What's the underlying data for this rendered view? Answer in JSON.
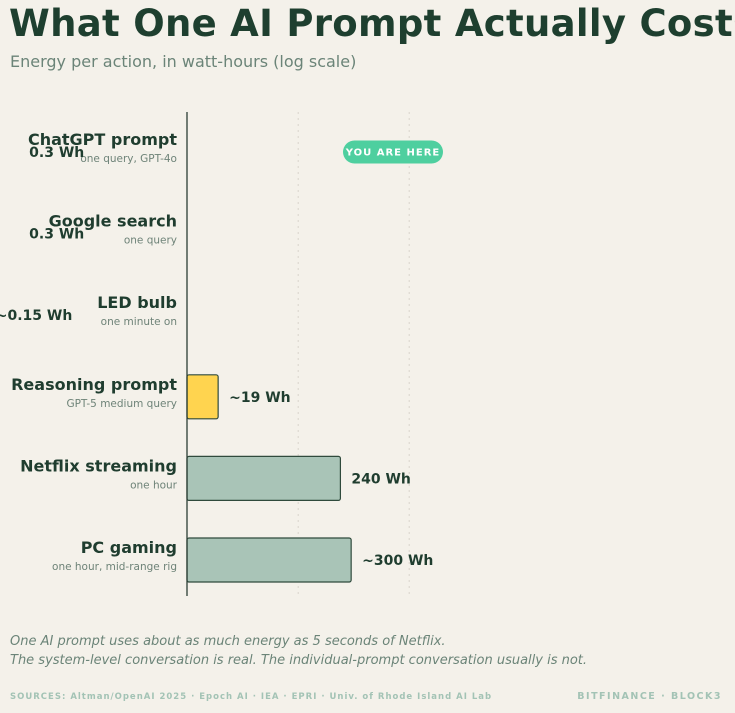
{
  "header": {
    "title": "What One AI Prompt Actually Costs",
    "subtitle": "Energy per action, in watt-hours (log scale)"
  },
  "chart_data": {
    "type": "bar",
    "orientation": "horizontal",
    "title": "What One AI Prompt Actually Costs",
    "subtitle": "Energy per action, in watt-hours (log scale)",
    "xscale": "log",
    "xlim": [
      0.1,
      1000
    ],
    "grid": true,
    "categories": [
      "ChatGPT prompt",
      "Google search",
      "LED bulb",
      "Reasoning prompt",
      "Netflix streaming",
      "PC gaming"
    ],
    "sublabels": [
      "one query, GPT-4o",
      "one query",
      "one minute on",
      "GPT-5 medium query",
      "one hour",
      "one hour, mid-range rig"
    ],
    "values": [
      0.3,
      0.3,
      0.15,
      19,
      240,
      300
    ],
    "value_labels": [
      "0.3 Wh",
      "0.3 Wh",
      "~0.15 Wh",
      "~19 Wh",
      "240 Wh",
      "~300 Wh"
    ],
    "bar_colors": [
      "#4ecf9f",
      "#a9c4b7",
      "#a9c4b7",
      "#ffd44f",
      "#a9c4b7",
      "#a9c4b7"
    ],
    "annotation": {
      "category": "ChatGPT prompt",
      "text": "YOU ARE HERE",
      "color": "#4ecf9f"
    }
  },
  "footnote": {
    "line1": "One AI prompt uses about as much energy as 5 seconds of Netflix.",
    "line2": "The system-level conversation is real. The individual-prompt conversation usually is not."
  },
  "footer": {
    "sources": "SOURCES: Altman/OpenAI 2025 · Epoch AI · IEA · EPRI · Univ. of Rhode Island AI Lab",
    "brand": "BITFINANCE · BLOCK3"
  }
}
